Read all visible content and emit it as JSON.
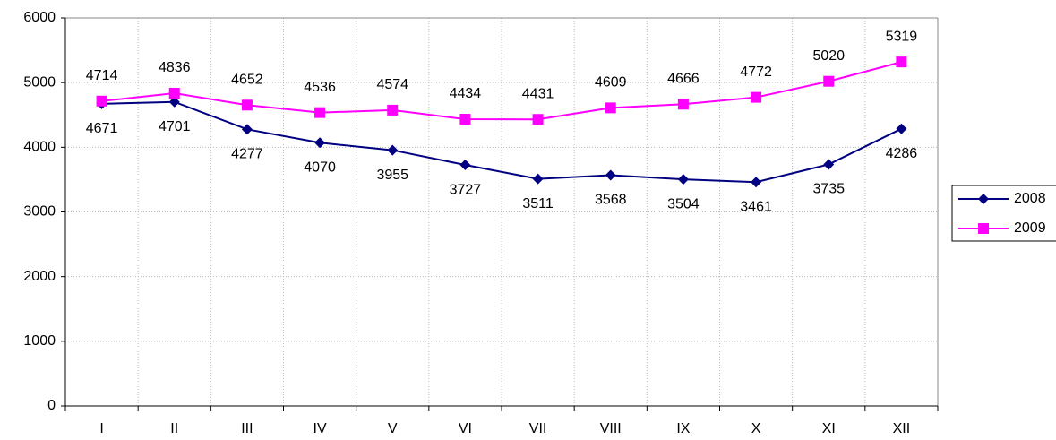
{
  "chart_data": {
    "type": "line",
    "categories": [
      "I",
      "II",
      "III",
      "IV",
      "V",
      "VI",
      "VII",
      "VIII",
      "IX",
      "X",
      "XI",
      "XII"
    ],
    "series": [
      {
        "name": "2008",
        "color": "#000080",
        "marker": "diamond",
        "values": [
          4671,
          4701,
          4277,
          4070,
          3955,
          3727,
          3511,
          3568,
          3504,
          3461,
          3735,
          4286
        ]
      },
      {
        "name": "2009",
        "color": "#ff00ff",
        "marker": "square",
        "values": [
          4714,
          4836,
          4652,
          4536,
          4574,
          4434,
          4431,
          4609,
          4666,
          4772,
          5020,
          5319
        ]
      }
    ],
    "ylim": [
      0,
      6000
    ],
    "yticks": [
      0,
      1000,
      2000,
      3000,
      4000,
      5000,
      6000
    ],
    "grid": true,
    "legend": "right"
  }
}
